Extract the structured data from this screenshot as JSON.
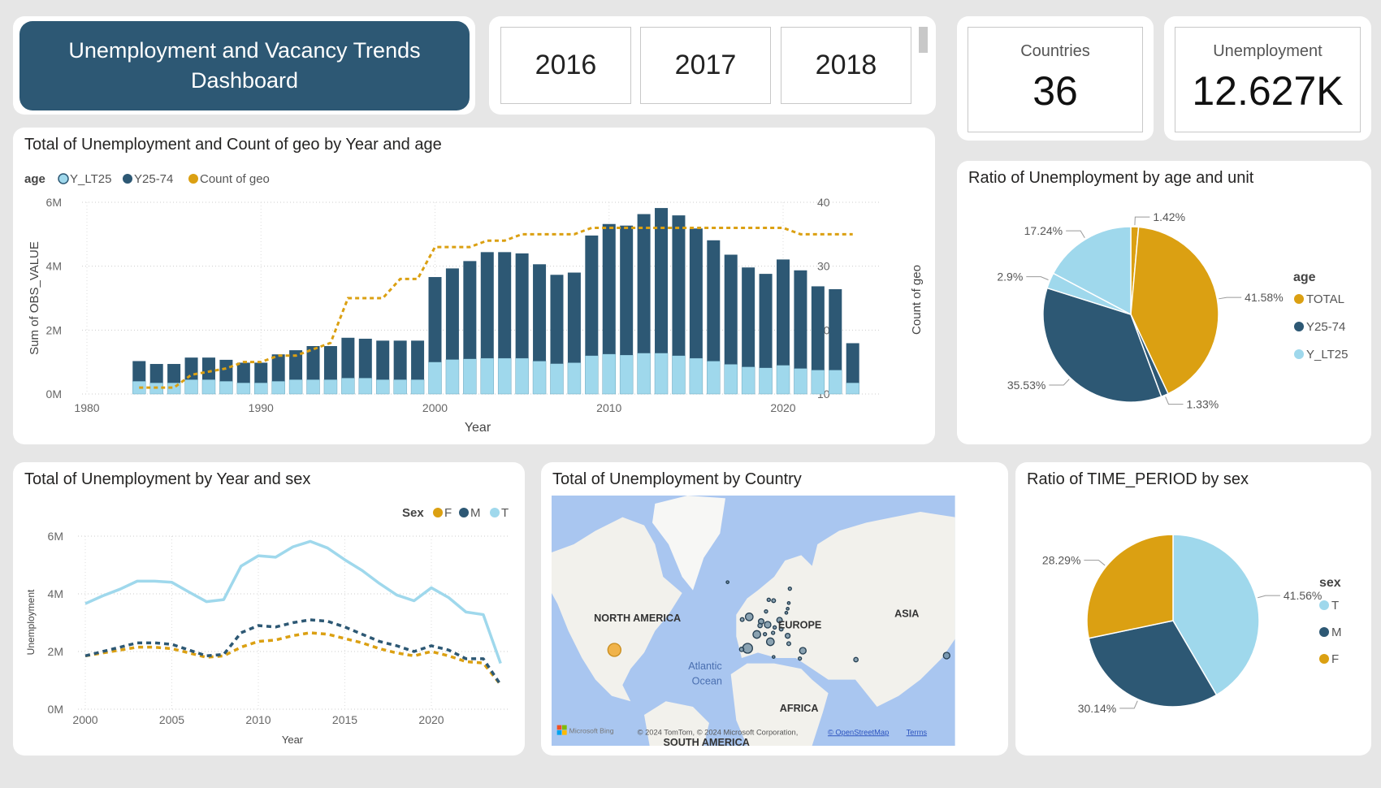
{
  "header": {
    "title": "Unemployment and Vacancy Trends Dashboard"
  },
  "year_slicer": {
    "years": [
      "2016",
      "2017",
      "2018"
    ]
  },
  "kpis": {
    "countries_label": "Countries",
    "countries_value": "36",
    "unemployment_label": "Unemployment",
    "unemployment_value": "12.627K"
  },
  "colors": {
    "navy": "#2d5874",
    "light_blue": "#9fd8ec",
    "gold": "#dba012"
  },
  "chart_data": [
    {
      "id": "bar_combo",
      "type": "bar",
      "title": "Total of Unemployment and Count of geo by Year and age",
      "legend_title": "age",
      "legend_position": "top-left",
      "xlabel": "Year",
      "ylabel": "Sum of OBS_VALUE",
      "y2label": "Count of geo",
      "xlim": [
        1980,
        2025
      ],
      "ylim": [
        0,
        6000000
      ],
      "y2lim": [
        10,
        40
      ],
      "x_ticks": [
        "1980",
        "1990",
        "2000",
        "2010",
        "2020"
      ],
      "y_ticks": [
        "0M",
        "2M",
        "4M",
        "6M"
      ],
      "y2_ticks": [
        "10",
        "20",
        "30",
        "40"
      ],
      "grid": true,
      "stacked": true,
      "x": [
        1983,
        1984,
        1985,
        1986,
        1987,
        1988,
        1989,
        1990,
        1991,
        1992,
        1993,
        1994,
        1995,
        1996,
        1997,
        1998,
        1999,
        2000,
        2001,
        2002,
        2003,
        2004,
        2005,
        2006,
        2007,
        2008,
        2009,
        2010,
        2011,
        2012,
        2013,
        2014,
        2015,
        2016,
        2017,
        2018,
        2019,
        2020,
        2021,
        2022,
        2023,
        2024
      ],
      "series": [
        {
          "name": "Y_LT25",
          "kind": "bar",
          "values": [
            0.4,
            0.35,
            0.35,
            0.45,
            0.45,
            0.4,
            0.35,
            0.35,
            0.4,
            0.45,
            0.45,
            0.45,
            0.5,
            0.5,
            0.45,
            0.45,
            0.45,
            1.0,
            1.08,
            1.1,
            1.12,
            1.12,
            1.12,
            1.03,
            0.95,
            0.98,
            1.2,
            1.25,
            1.22,
            1.28,
            1.28,
            1.2,
            1.12,
            1.03,
            0.93,
            0.85,
            0.82,
            0.9,
            0.8,
            0.75,
            0.75,
            0.35
          ],
          "unit": "M"
        },
        {
          "name": "Y25-74",
          "kind": "bar",
          "values": [
            0.63,
            0.59,
            0.59,
            0.69,
            0.69,
            0.67,
            0.63,
            0.63,
            0.84,
            0.92,
            1.05,
            1.05,
            1.26,
            1.23,
            1.22,
            1.22,
            1.22,
            2.66,
            2.85,
            3.06,
            3.32,
            3.32,
            3.28,
            3.03,
            2.78,
            2.82,
            3.76,
            4.07,
            4.05,
            4.35,
            4.54,
            4.39,
            4.06,
            3.78,
            3.43,
            3.11,
            2.94,
            3.31,
            3.07,
            2.62,
            2.53,
            1.24
          ],
          "unit": "M"
        },
        {
          "name": "Count of geo",
          "kind": "line",
          "axis": "y2",
          "values": [
            11,
            11,
            11,
            13,
            13.5,
            14,
            15,
            15,
            16,
            16,
            17,
            18,
            25,
            25,
            25,
            28,
            28,
            33,
            33,
            33,
            34,
            34,
            35,
            35,
            35,
            35,
            36,
            36,
            36,
            36,
            36,
            36,
            36,
            36,
            36,
            36,
            36,
            36,
            35,
            35,
            35,
            35
          ]
        }
      ]
    },
    {
      "id": "pie_age",
      "type": "pie",
      "title": "Ratio of Unemployment by age and unit",
      "legend_title": "age",
      "legend_position": "right",
      "legend": [
        "TOTAL",
        "Y25-74",
        "Y_LT25"
      ],
      "slices": [
        {
          "group": "TOTAL",
          "value": 1.42,
          "label": "1.42%"
        },
        {
          "group": "TOTAL",
          "value": 41.58,
          "label": "41.58%"
        },
        {
          "group": "Y25-74",
          "value": 1.33,
          "label": "1.33%"
        },
        {
          "group": "Y25-74",
          "value": 35.53,
          "label": "35.53%"
        },
        {
          "group": "Y_LT25",
          "value": 2.9,
          "label": "2.9%"
        },
        {
          "group": "Y_LT25",
          "value": 17.24,
          "label": "17.24%"
        }
      ]
    },
    {
      "id": "line_sex",
      "type": "line",
      "title": "Total of Unemployment by Year and sex",
      "legend_title": "Sex",
      "legend_position": "top-right",
      "xlabel": "Year",
      "ylabel": "Unemployment",
      "xlim": [
        2000,
        2024
      ],
      "ylim": [
        0,
        6000000
      ],
      "x_ticks": [
        "2000",
        "2005",
        "2010",
        "2015",
        "2020"
      ],
      "y_ticks": [
        "0M",
        "2M",
        "4M",
        "6M"
      ],
      "grid": true,
      "x": [
        2000,
        2001,
        2002,
        2003,
        2004,
        2005,
        2006,
        2007,
        2008,
        2009,
        2010,
        2011,
        2012,
        2013,
        2014,
        2015,
        2016,
        2017,
        2018,
        2019,
        2020,
        2021,
        2022,
        2023,
        2024
      ],
      "series": [
        {
          "name": "F",
          "style": "dashed",
          "values": [
            1.85,
            1.95,
            2.05,
            2.15,
            2.15,
            2.1,
            1.95,
            1.8,
            1.85,
            2.15,
            2.35,
            2.4,
            2.55,
            2.65,
            2.6,
            2.45,
            2.3,
            2.1,
            1.95,
            1.85,
            2.0,
            1.85,
            1.65,
            1.6,
            0.85
          ]
        },
        {
          "name": "M",
          "style": "dashed",
          "values": [
            1.85,
            2.0,
            2.15,
            2.3,
            2.3,
            2.25,
            2.05,
            1.85,
            1.9,
            2.65,
            2.9,
            2.85,
            3.0,
            3.1,
            3.05,
            2.85,
            2.6,
            2.35,
            2.2,
            2.0,
            2.2,
            2.05,
            1.75,
            1.75,
            0.85
          ]
        },
        {
          "name": "T",
          "style": "solid",
          "values": [
            3.66,
            3.93,
            4.16,
            4.44,
            4.44,
            4.4,
            4.06,
            3.73,
            3.8,
            4.96,
            5.32,
            5.27,
            5.63,
            5.82,
            5.59,
            5.18,
            4.81,
            4.36,
            3.96,
            3.76,
            4.21,
            3.87,
            3.37,
            3.28,
            1.59
          ]
        }
      ]
    },
    {
      "id": "pie_sex",
      "type": "pie",
      "title": "Ratio of TIME_PERIOD by sex",
      "legend_title": "sex",
      "legend_position": "right",
      "legend": [
        "T",
        "M",
        "F"
      ],
      "slices": [
        {
          "group": "T",
          "value": 41.56,
          "label": "41.56%"
        },
        {
          "group": "M",
          "value": 30.14,
          "label": "30.14%"
        },
        {
          "group": "F",
          "value": 28.29,
          "label": "28.29%"
        }
      ]
    }
  ],
  "map": {
    "title": "Total of Unemployment by Country",
    "labels": {
      "north_america": "NORTH AMERICA",
      "europe": "EUROPE",
      "asia": "ASIA",
      "africa": "AFRICA",
      "south_america": "SOUTH AMERICA",
      "ocean_1": "Atlantic",
      "ocean_2": "Ocean"
    },
    "attribution": {
      "bing": "Microsoft Bing",
      "copyright": "© 2024 TomTom, © 2024 Microsoft Corporation,",
      "osm": "© OpenStreetMap",
      "terms": "Terms"
    }
  }
}
